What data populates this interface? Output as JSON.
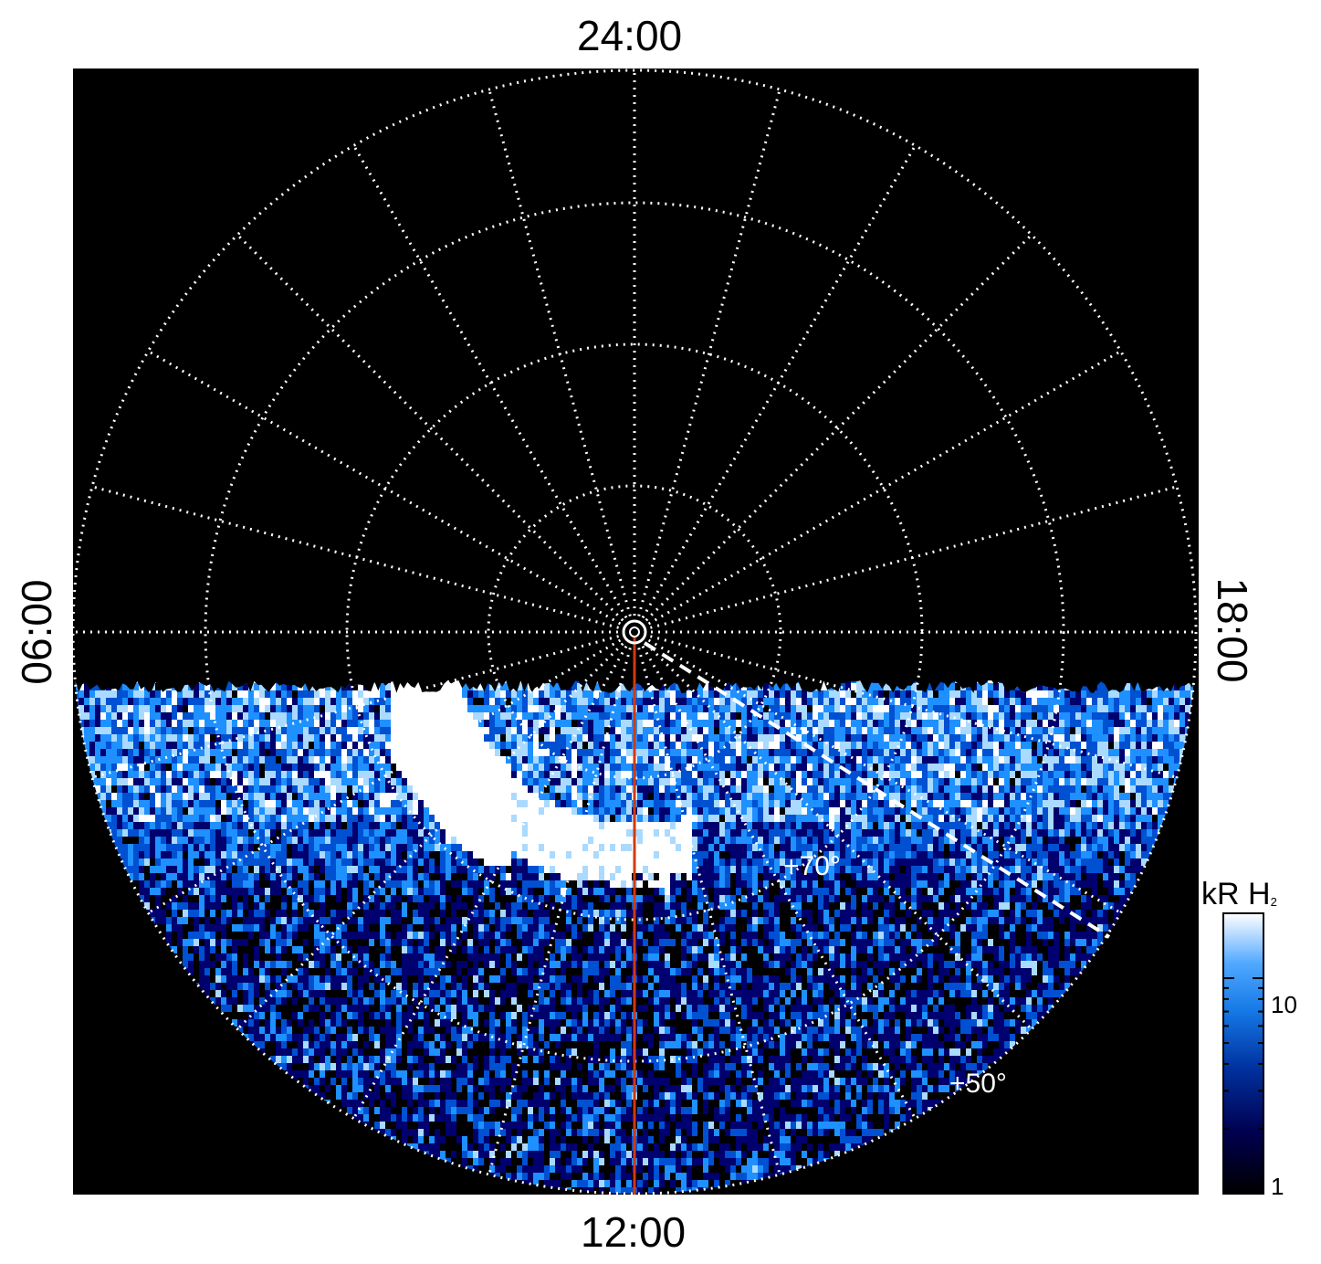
{
  "local_time_labels": {
    "top": "24:00",
    "bottom": "12:00",
    "left": "06:00",
    "right": "18:00"
  },
  "latitude_labels": [
    "+70°",
    "+50°"
  ],
  "colorbar": {
    "title_main": "kR H",
    "title_sub": "2",
    "ticks": [
      "10",
      "1"
    ],
    "scale": "log"
  },
  "colors": {
    "background": "#000000",
    "grid": "#ffffff",
    "meridian_line": "#d23a10",
    "colormap": [
      "#000000",
      "#00006e",
      "#0050d2",
      "#1e90ff",
      "#aadaff",
      "#ffffff"
    ]
  },
  "chart_data": {
    "type": "heatmap",
    "projection": "polar stereographic (north)",
    "title": "",
    "color_value_label": "kR H2",
    "color_scale": "log",
    "color_range_kR": [
      1,
      20
    ],
    "local_time_range_hours": [
      0,
      24
    ],
    "latitude_circles_deg": [
      80,
      70,
      60,
      50
    ],
    "meridian_step_hours": 1,
    "observed_region": "dayside, latitudes below about 70° on the nightside edge",
    "main_oval_brightness_kR": 20,
    "background_brightness_kR": [
      1,
      10
    ],
    "annotations": [
      "+70°",
      "+50°",
      "red line at 12:00 local time",
      "dashed line near 16:00 local time"
    ]
  }
}
